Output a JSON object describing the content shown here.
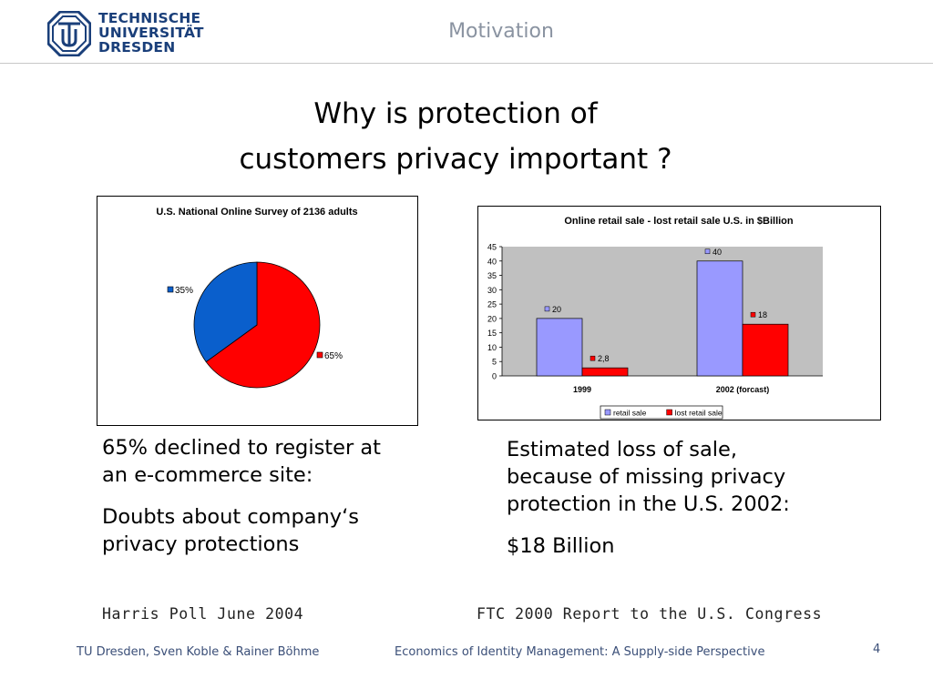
{
  "header": {
    "logo_lines": [
      "TECHNISCHE",
      "UNIVERSITÄT",
      "DRESDEN"
    ],
    "section_title": "Motivation"
  },
  "slide": {
    "title_line1": "Why is protection of",
    "title_line2": "customers privacy important ?"
  },
  "left_column": {
    "paragraph1": "65% declined to register at an e-commerce site:",
    "paragraph2": "Doubts about company‘s privacy protections",
    "source": "Harris Poll June 2004"
  },
  "right_column": {
    "paragraph1": "Estimated loss of sale, because of missing privacy protection in the U.S. 2002:",
    "paragraph2": "$18 Billion",
    "source": "FTC 2000 Report to the U.S. Congress"
  },
  "footer": {
    "authors": "TU Dresden, Sven Koble & Rainer Böhme",
    "course": "Economics of Identity Management: A Supply-side Perspective",
    "page_number": "4"
  },
  "colors": {
    "pie_blue": "#0a5fcc",
    "pie_red": "#ff0000",
    "bar_retail": "#9999ff",
    "bar_lost": "#ff0000",
    "plot_background": "#c0c0c0",
    "logo_blue": "#1a3f7a"
  },
  "chart_data": [
    {
      "type": "pie",
      "title": "U.S. National Online Survey of 2136 adults",
      "slices": [
        {
          "label": "35%",
          "value": 35,
          "color": "#0a5fcc"
        },
        {
          "label": "65%",
          "value": 65,
          "color": "#ff0000"
        }
      ]
    },
    {
      "type": "bar",
      "title": "Online retail sale  -  lost retail sale U.S. in $Billion",
      "categories": [
        "1999",
        "2002 (forcast)"
      ],
      "series": [
        {
          "name": "retail sale",
          "values": [
            20,
            40
          ],
          "labels": [
            "20",
            "40"
          ],
          "color": "#9999ff"
        },
        {
          "name": "lost retail sale",
          "values": [
            2.8,
            18
          ],
          "labels": [
            "2,8",
            "18"
          ],
          "color": "#ff0000"
        }
      ],
      "ylim": [
        0,
        45
      ],
      "yticks": [
        0,
        5,
        10,
        15,
        20,
        25,
        30,
        35,
        40,
        45
      ],
      "grid": false,
      "legend": "bottom"
    }
  ]
}
